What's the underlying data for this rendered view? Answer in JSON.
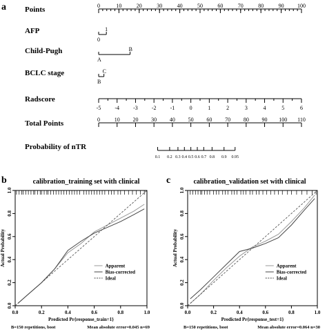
{
  "panels": {
    "a": "a",
    "b": "b",
    "c": "c"
  },
  "chart_data": [
    {
      "type": "nomogram",
      "rows": [
        {
          "label": "Points",
          "kind": "scale",
          "range": [
            0,
            100
          ],
          "ticks": [
            0,
            10,
            20,
            30,
            40,
            50,
            60,
            70,
            80,
            90,
            100
          ],
          "minor_step": 2
        },
        {
          "label": "AFP",
          "kind": "categorical",
          "levels": [
            {
              "text": "0",
              "points": 0
            },
            {
              "text": "1",
              "points": 3.8
            }
          ]
        },
        {
          "label": "Child-Pugh",
          "kind": "categorical",
          "levels": [
            {
              "text": "A",
              "points": 0
            },
            {
              "text": "B",
              "points": 15.5
            }
          ]
        },
        {
          "label": "BCLC stage",
          "kind": "categorical",
          "levels": [
            {
              "text": "B",
              "points": 0
            },
            {
              "text": "C",
              "points": 2.6
            }
          ]
        },
        {
          "label": "Radscore",
          "kind": "scale",
          "points_range": [
            0,
            100
          ],
          "ticks": [
            -5,
            -4,
            -3,
            -2,
            -1,
            0,
            1,
            2,
            3,
            4,
            5,
            6
          ]
        },
        {
          "label": "Total Points",
          "kind": "scale",
          "range": [
            0,
            110
          ],
          "ticks": [
            0,
            10,
            20,
            30,
            40,
            50,
            60,
            70,
            80,
            90,
            100,
            110
          ]
        },
        {
          "label": "Probability of nTR",
          "kind": "probability",
          "ticks": [
            {
              "text": "0.1",
              "total": 32
            },
            {
              "text": "0.2",
              "total": 38.5
            },
            {
              "text": "0.3",
              "total": 43
            },
            {
              "text": "0.4",
              "total": 46.5
            },
            {
              "text": "0.5",
              "total": 50
            },
            {
              "text": "0.6",
              "total": 53.5
            },
            {
              "text": "0.7",
              "total": 57
            },
            {
              "text": "0.8",
              "total": 61.5
            },
            {
              "text": "0.9",
              "total": 68
            },
            {
              "text": "0.95",
              "total": 74
            }
          ]
        }
      ]
    },
    {
      "type": "line",
      "title": "calibration_training set with clinical",
      "xlabel": "Predicted Pr{response_train=1}",
      "ylabel": "Actual Probability",
      "xlim": [
        0,
        1
      ],
      "ylim": [
        0,
        1
      ],
      "xticks": [
        "0.0",
        "0.2",
        "0.4",
        "0.6",
        "0.8",
        "1.0"
      ],
      "yticks": [
        "0.0",
        "0.2",
        "0.4",
        "0.6",
        "0.8",
        "1.0"
      ],
      "legend": [
        "Apparent",
        "Bias-corrected",
        "Ideal"
      ],
      "legend_position": "bottom-right",
      "series": [
        {
          "name": "Apparent",
          "color": "#999999",
          "x": [
            0.02,
            0.1,
            0.2,
            0.3,
            0.4,
            0.5,
            0.6,
            0.7,
            0.8,
            0.9,
            0.98
          ],
          "y": [
            0.02,
            0.1,
            0.2,
            0.32,
            0.46,
            0.54,
            0.64,
            0.7,
            0.76,
            0.82,
            0.88
          ]
        },
        {
          "name": "Bias-corrected",
          "color": "#444444",
          "x": [
            0.02,
            0.1,
            0.2,
            0.3,
            0.4,
            0.5,
            0.6,
            0.7,
            0.8,
            0.9,
            0.98
          ],
          "y": [
            0.02,
            0.1,
            0.2,
            0.32,
            0.48,
            0.56,
            0.63,
            0.68,
            0.73,
            0.79,
            0.84
          ]
        },
        {
          "name": "Ideal",
          "color": "#444444",
          "dashed": true,
          "x": [
            0,
            1
          ],
          "y": [
            0,
            1
          ]
        }
      ],
      "rug": [
        0.01,
        0.03,
        0.05,
        0.06,
        0.08,
        0.1,
        0.12,
        0.14,
        0.15,
        0.17,
        0.19,
        0.2,
        0.22,
        0.24,
        0.25,
        0.27,
        0.29,
        0.31,
        0.33,
        0.35,
        0.37,
        0.39,
        0.41,
        0.43,
        0.45,
        0.47,
        0.49,
        0.52,
        0.54,
        0.56,
        0.58,
        0.6,
        0.62,
        0.64,
        0.66,
        0.68,
        0.71,
        0.73,
        0.75,
        0.78,
        0.8,
        0.83,
        0.86,
        0.89,
        0.92,
        0.95,
        0.98
      ],
      "footer_left": "B=150 repetitions, boot",
      "footer_right": "Mean absolute error=0.045 n=69"
    },
    {
      "type": "line",
      "title": "calibration_validation set with clinical",
      "xlabel": "Predicted Pr{response_test=1}",
      "ylabel": "Actual Probability",
      "xlim": [
        0,
        1
      ],
      "ylim": [
        0,
        1
      ],
      "xticks": [
        "0.0",
        "0.2",
        "0.4",
        "0.6",
        "0.8",
        "1.0"
      ],
      "yticks": [
        "0.0",
        "0.2",
        "0.4",
        "0.6",
        "0.8",
        "1.0"
      ],
      "legend": [
        "Apparent",
        "Bias-corrected",
        "Ideal"
      ],
      "legend_position": "bottom-right",
      "series": [
        {
          "name": "Apparent",
          "color": "#999999",
          "x": [
            0.02,
            0.1,
            0.2,
            0.3,
            0.4,
            0.5,
            0.6,
            0.7,
            0.8,
            0.9,
            0.98
          ],
          "y": [
            0.02,
            0.1,
            0.22,
            0.33,
            0.43,
            0.51,
            0.56,
            0.62,
            0.73,
            0.85,
            0.96
          ]
        },
        {
          "name": "Bias-corrected",
          "color": "#444444",
          "x": [
            0.02,
            0.1,
            0.2,
            0.3,
            0.4,
            0.5,
            0.6,
            0.7,
            0.8,
            0.9,
            0.98
          ],
          "y": [
            0.06,
            0.14,
            0.25,
            0.36,
            0.47,
            0.5,
            0.54,
            0.59,
            0.7,
            0.83,
            0.93
          ]
        },
        {
          "name": "Ideal",
          "color": "#444444",
          "dashed": true,
          "x": [
            0,
            1
          ],
          "y": [
            0,
            1
          ]
        }
      ],
      "rug": [
        0.0,
        0.02,
        0.04,
        0.06,
        0.08,
        0.1,
        0.11,
        0.13,
        0.15,
        0.17,
        0.2,
        0.22,
        0.24,
        0.27,
        0.29,
        0.31,
        0.34,
        0.36,
        0.38,
        0.41,
        0.43,
        0.45,
        0.48,
        0.5,
        0.53,
        0.55,
        0.58,
        0.61,
        0.64,
        0.67,
        0.7,
        0.73,
        0.77,
        0.8,
        0.84,
        0.88,
        0.92,
        0.96,
        0.99
      ],
      "footer_left": "B=150 repetitions, boot",
      "footer_right": "Mean absolute error=0.064 n=30"
    }
  ]
}
